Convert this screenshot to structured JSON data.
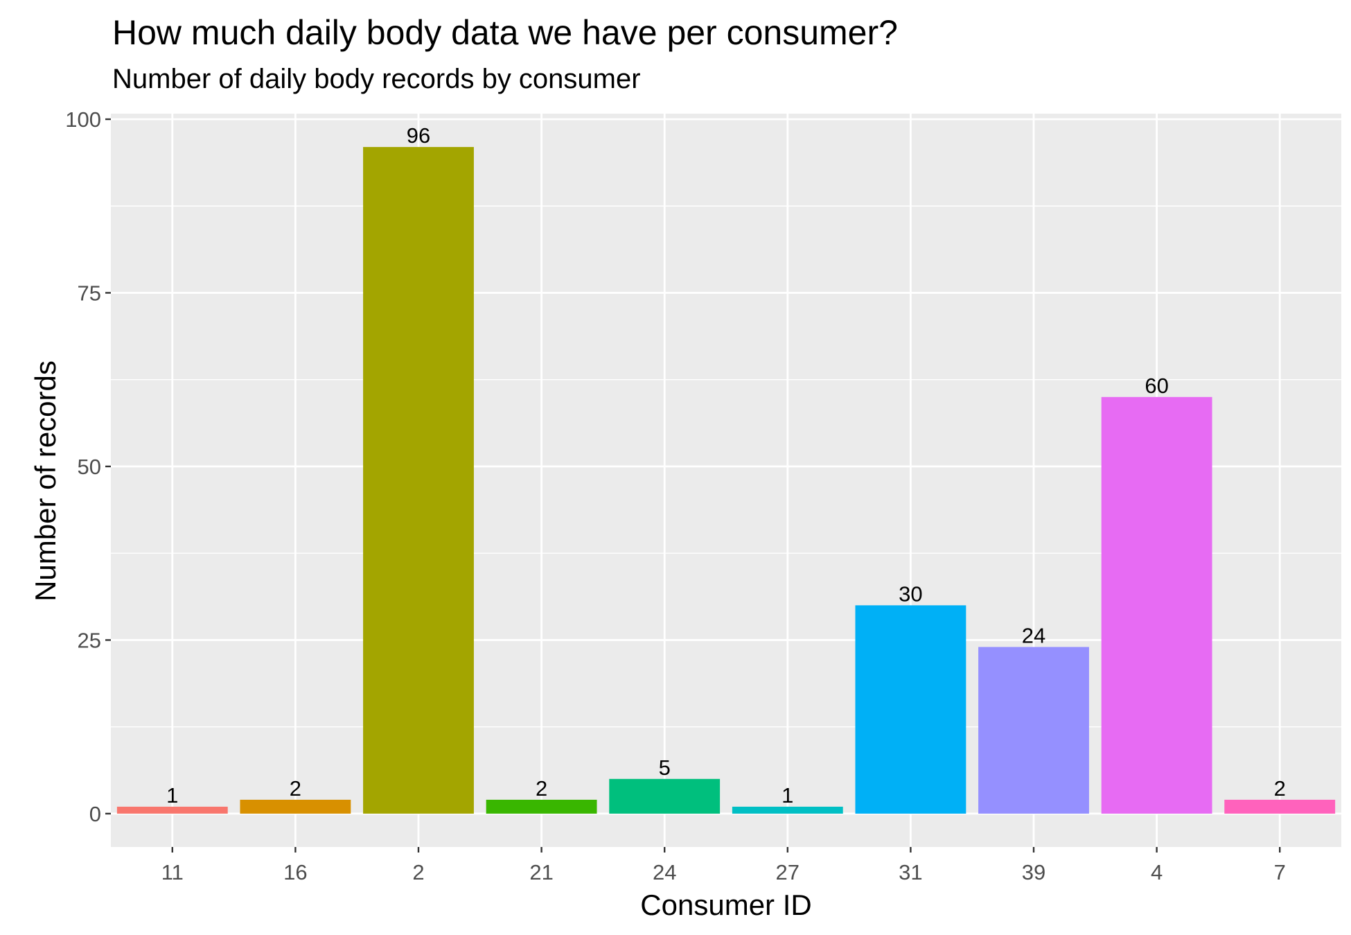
{
  "chart_data": {
    "type": "bar",
    "title": "How much daily body data we have per consumer?",
    "subtitle": "Number of daily body records by consumer",
    "xlabel": "Consumer ID",
    "ylabel": "Number of records",
    "categories": [
      "11",
      "16",
      "2",
      "21",
      "24",
      "27",
      "31",
      "39",
      "4",
      "7"
    ],
    "values": [
      1,
      2,
      96,
      2,
      5,
      1,
      30,
      24,
      60,
      2
    ],
    "data_labels": [
      "1",
      "2",
      "96",
      "2",
      "5",
      "1",
      "30",
      "24",
      "60",
      "2"
    ],
    "colors": [
      "#F8766D",
      "#D89000",
      "#A3A500",
      "#39B600",
      "#00BF7D",
      "#00BFC4",
      "#00B0F6",
      "#9590FF",
      "#E76BF3",
      "#FF62BC"
    ],
    "ylim": [
      -4.8,
      100.8
    ],
    "yticks": [
      0,
      25,
      50,
      75,
      100
    ],
    "ytick_labels": [
      "0",
      "25",
      "50",
      "75",
      "100"
    ],
    "grid": true,
    "legend": "none",
    "panel_background": "#EBEBEB",
    "grid_color": "#FFFFFF",
    "axis_text_color": "#4D4D4D"
  }
}
